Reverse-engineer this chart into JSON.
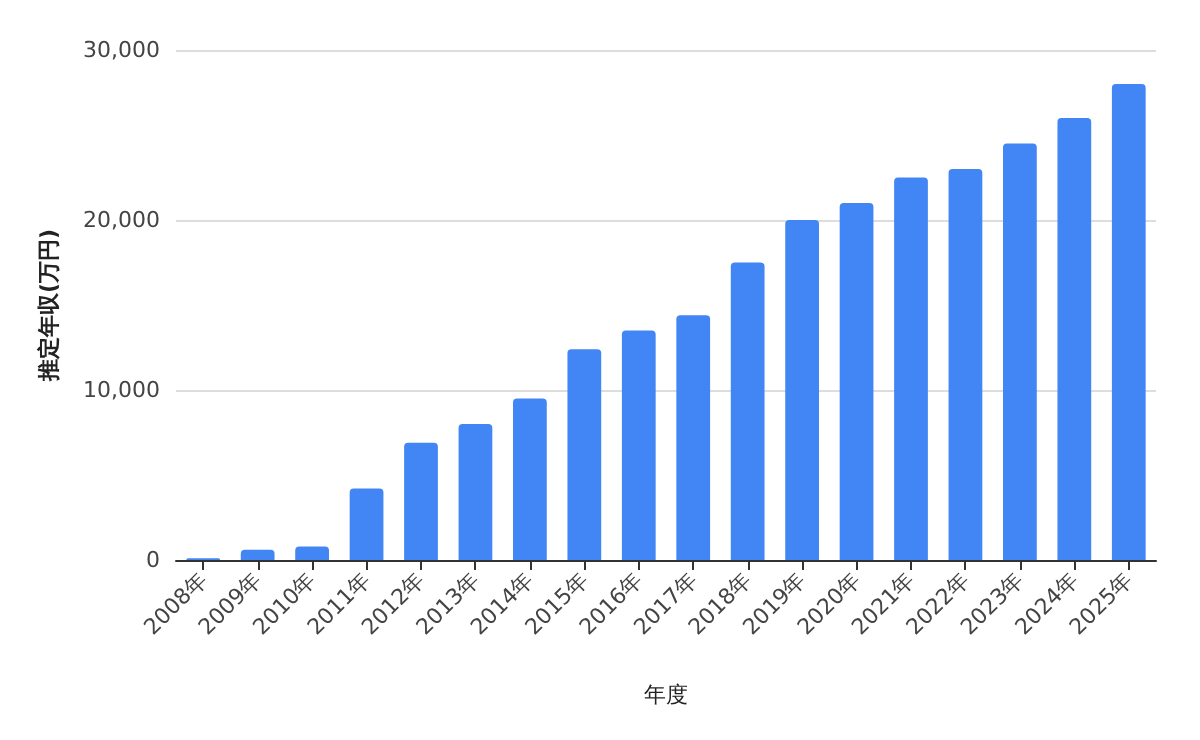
{
  "chart_data": {
    "type": "bar",
    "xlabel": "年度",
    "ylabel": "推定年収(万円)",
    "categories": [
      "2008年",
      "2009年",
      "2010年",
      "2011年",
      "2012年",
      "2013年",
      "2014年",
      "2015年",
      "2016年",
      "2017年",
      "2018年",
      "2019年",
      "2020年",
      "2021年",
      "2022年",
      "2023年",
      "2024年",
      "2025年"
    ],
    "values": [
      100,
      600,
      800,
      4200,
      6900,
      8000,
      9500,
      12400,
      13500,
      14400,
      17500,
      20000,
      21000,
      22500,
      23000,
      24500,
      26000,
      28000
    ],
    "color": "#4285f4",
    "ylim": [
      0,
      30000
    ],
    "yticks": [
      {
        "value": 0,
        "label": "0"
      },
      {
        "value": 10000,
        "label": "10,000"
      },
      {
        "value": 20000,
        "label": "20,000"
      },
      {
        "value": 30000,
        "label": "30,000"
      }
    ],
    "grid": "y"
  }
}
